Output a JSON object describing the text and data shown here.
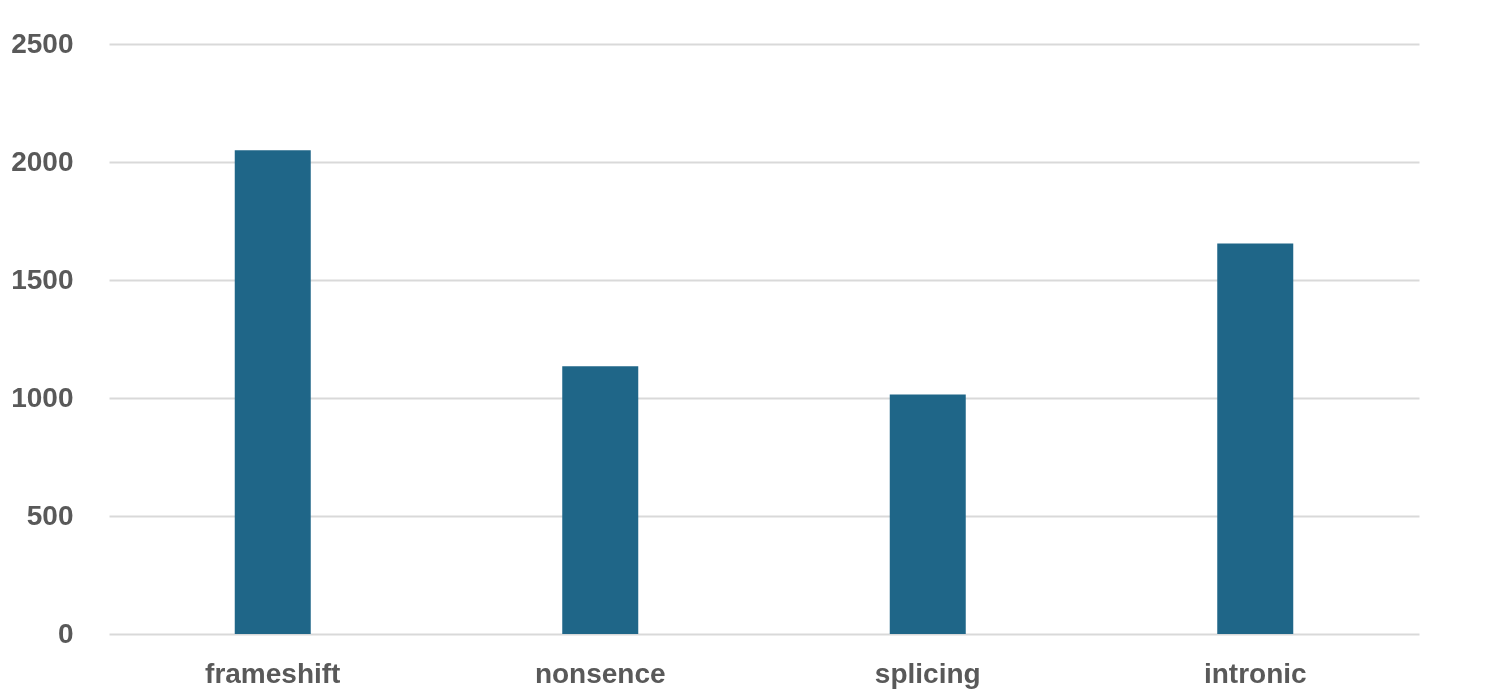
{
  "chart_data": {
    "type": "bar",
    "categories": [
      "frameshift",
      "nonsence",
      "splicing",
      "intronic"
    ],
    "values": [
      2050,
      1135,
      1015,
      1655
    ],
    "color": "#1f6688",
    "ylim": [
      0,
      2500
    ],
    "yticks": [
      0,
      500,
      1000,
      1500,
      2000,
      2500
    ],
    "grid": "y"
  }
}
